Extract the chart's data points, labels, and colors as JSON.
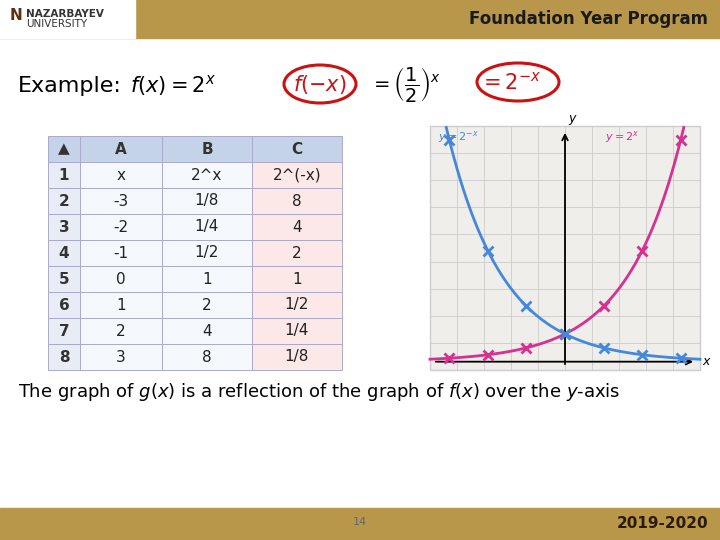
{
  "bg_color": "#ffffff",
  "header_bg_left": "#ffffff",
  "header_bg_right": "#a08040",
  "header_logo_bg": "#ffffff",
  "slide_title": "Foundation Year Program",
  "footer_bg": "#b09050",
  "footer_text": "2019-2020",
  "page_number": "14",
  "table_header_bg": "#c5d3e8",
  "table_row_num_bg": "#e8ecf5",
  "table_col_b_bg": "#f5f5f5",
  "table_col_c_bg": "#fce8e6",
  "table_border": "#aaaaaa",
  "table_data": [
    [
      "x",
      "2^x",
      "2^(-x)"
    ],
    [
      "-3",
      "1/8",
      "8"
    ],
    [
      "-2",
      "1/4",
      "4"
    ],
    [
      "-1",
      "1/2",
      "2"
    ],
    [
      "0",
      "1",
      "1"
    ],
    [
      "1",
      "2",
      "1/2"
    ],
    [
      "2",
      "4",
      "1/4"
    ],
    [
      "3",
      "8",
      "1/8"
    ]
  ],
  "x_data": [
    -3,
    -2,
    -1,
    0,
    1,
    2,
    3
  ],
  "f_color": "#d63090",
  "g_color": "#4488dd",
  "graph_bg": "#f0eeea",
  "circle_color": "#cc1111",
  "formula_black": "#1a1a1a",
  "formula_red": "#cc1111"
}
